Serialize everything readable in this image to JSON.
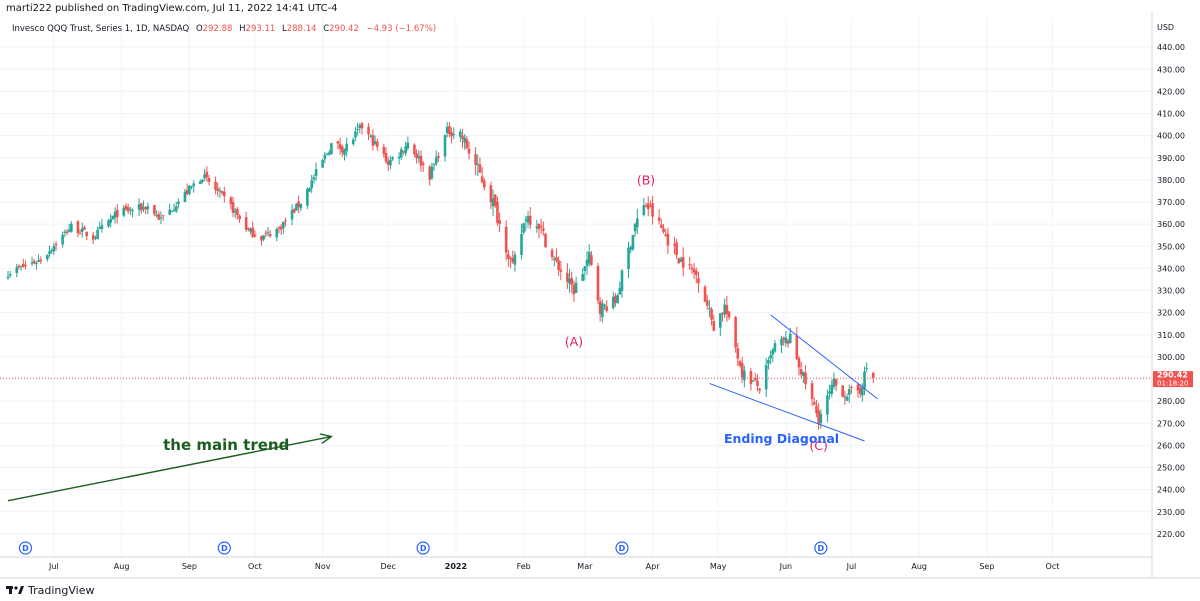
{
  "header": {
    "published_line": "marti222 published on TradingView.com, Jul 11, 2022 14:41 UTC-4"
  },
  "legend": {
    "instrument": "Invesco QQQ Trust, Series 1, 1D, NASDAQ",
    "open_label": "O",
    "open": "292.88",
    "high_label": "H",
    "high": "293.11",
    "low_label": "L",
    "low": "288.14",
    "close_label": "C",
    "close": "290.42",
    "change": "−4.93 (−1.67%)",
    "value_color": "#ef5350"
  },
  "price_axis": {
    "currency": "USD",
    "last_price": "290.42",
    "countdown": "01:18:20",
    "last_price_color": "#ef5350"
  },
  "footer": {
    "brand": "TradingView",
    "logo_icon": "tradingview-logo-icon"
  },
  "annotations": [
    {
      "id": "label-a",
      "text": "(A)",
      "color": "#e91e63",
      "x": "2022-02-24",
      "y": 305
    },
    {
      "id": "label-b",
      "text": "(B)",
      "color": "#e91e63",
      "x": "2022-03-29",
      "y": 378
    },
    {
      "id": "label-c",
      "text": "(C)",
      "color": "#e91e63",
      "x": "2022-06-16",
      "y": 258
    },
    {
      "id": "label-ending-diagonal",
      "text": "Ending Diagonal",
      "color": "#2962ff",
      "x": "2022-05-30",
      "y": 261
    },
    {
      "id": "label-main-trend",
      "text": "the main trend",
      "color": "#1b5e20",
      "x": "2021-08-20",
      "y": 258
    }
  ],
  "drawings": [
    {
      "id": "main-trend-arrow",
      "type": "arrow",
      "color": "#1b5e20",
      "from": {
        "x": "2021-06-10",
        "y": 235
      },
      "to": {
        "x": "2021-11-05",
        "y": 264
      }
    },
    {
      "id": "diagonal-upper-line",
      "type": "line",
      "color": "#2962ff",
      "from": {
        "x": "2022-05-25",
        "y": 319
      },
      "to": {
        "x": "2022-07-13",
        "y": 281
      }
    },
    {
      "id": "diagonal-lower-line",
      "type": "line",
      "color": "#2962ff",
      "from": {
        "x": "2022-04-27",
        "y": 288
      },
      "to": {
        "x": "2022-07-07",
        "y": 262
      }
    }
  ],
  "event_markers": {
    "label": "D",
    "color": "#2962ff",
    "dates": [
      "2021-06-18",
      "2021-09-17",
      "2021-12-17",
      "2022-03-18",
      "2022-06-17"
    ]
  },
  "chart_data": {
    "type": "candlestick",
    "xlabel": "",
    "ylabel": "",
    "x_range": [
      "2021-06-10",
      "2022-10-31"
    ],
    "ylim": [
      215,
      450
    ],
    "y_ticks": [
      220,
      230,
      240,
      250,
      260,
      270,
      280,
      290,
      300,
      310,
      320,
      330,
      340,
      350,
      360,
      370,
      380,
      390,
      400,
      410,
      420,
      430,
      440
    ],
    "x_ticks": [
      {
        "label": "Jul",
        "date": "2021-07-01"
      },
      {
        "label": "Aug",
        "date": "2021-08-01"
      },
      {
        "label": "Sep",
        "date": "2021-09-01"
      },
      {
        "label": "Oct",
        "date": "2021-10-01"
      },
      {
        "label": "Nov",
        "date": "2021-11-01"
      },
      {
        "label": "Dec",
        "date": "2021-12-01"
      },
      {
        "label": "2022",
        "date": "2022-01-01",
        "bold": true
      },
      {
        "label": "Feb",
        "date": "2022-02-01"
      },
      {
        "label": "Mar",
        "date": "2022-03-01"
      },
      {
        "label": "Apr",
        "date": "2022-04-01"
      },
      {
        "label": "May",
        "date": "2022-05-01"
      },
      {
        "label": "Jun",
        "date": "2022-06-01"
      },
      {
        "label": "Jul",
        "date": "2022-07-01"
      },
      {
        "label": "Aug",
        "date": "2022-08-01"
      },
      {
        "label": "Sep",
        "date": "2022-09-01"
      },
      {
        "label": "Oct",
        "date": "2022-10-01"
      }
    ],
    "grid": true,
    "up_color": "#26a69a",
    "down_color": "#ef5350",
    "last_price_line": 290.42,
    "close_anchors": [
      {
        "date": "2021-06-10",
        "close": 338
      },
      {
        "date": "2021-06-25",
        "close": 344
      },
      {
        "date": "2021-07-09",
        "close": 359
      },
      {
        "date": "2021-07-19",
        "close": 354
      },
      {
        "date": "2021-07-30",
        "close": 365
      },
      {
        "date": "2021-08-13",
        "close": 368
      },
      {
        "date": "2021-08-19",
        "close": 362
      },
      {
        "date": "2021-09-07",
        "close": 382
      },
      {
        "date": "2021-09-20",
        "close": 368
      },
      {
        "date": "2021-09-28",
        "close": 357
      },
      {
        "date": "2021-10-04",
        "close": 354
      },
      {
        "date": "2021-10-12",
        "close": 358
      },
      {
        "date": "2021-10-22",
        "close": 370
      },
      {
        "date": "2021-11-05",
        "close": 396
      },
      {
        "date": "2021-11-11",
        "close": 394
      },
      {
        "date": "2021-11-19",
        "close": 404
      },
      {
        "date": "2021-12-01",
        "close": 388
      },
      {
        "date": "2021-12-06",
        "close": 392
      },
      {
        "date": "2021-12-10",
        "close": 397
      },
      {
        "date": "2021-12-20",
        "close": 382
      },
      {
        "date": "2021-12-28",
        "close": 402
      },
      {
        "date": "2022-01-03",
        "close": 401
      },
      {
        "date": "2022-01-18",
        "close": 370
      },
      {
        "date": "2022-01-27",
        "close": 340
      },
      {
        "date": "2022-02-02",
        "close": 364
      },
      {
        "date": "2022-02-08",
        "close": 360
      },
      {
        "date": "2022-02-14",
        "close": 345
      },
      {
        "date": "2022-02-24",
        "close": 330
      },
      {
        "date": "2022-03-03",
        "close": 345
      },
      {
        "date": "2022-03-08",
        "close": 322
      },
      {
        "date": "2022-03-15",
        "close": 325
      },
      {
        "date": "2022-03-24",
        "close": 360
      },
      {
        "date": "2022-03-29",
        "close": 369
      },
      {
        "date": "2022-04-05",
        "close": 358
      },
      {
        "date": "2022-04-13",
        "close": 345
      },
      {
        "date": "2022-04-22",
        "close": 336
      },
      {
        "date": "2022-04-29",
        "close": 314
      },
      {
        "date": "2022-05-04",
        "close": 323
      },
      {
        "date": "2022-05-12",
        "close": 293
      },
      {
        "date": "2022-05-20",
        "close": 286
      },
      {
        "date": "2022-05-27",
        "close": 305
      },
      {
        "date": "2022-06-03",
        "close": 308
      },
      {
        "date": "2022-06-10",
        "close": 288
      },
      {
        "date": "2022-06-16",
        "close": 272
      },
      {
        "date": "2022-06-23",
        "close": 288
      },
      {
        "date": "2022-06-28",
        "close": 283
      },
      {
        "date": "2022-07-05",
        "close": 285
      },
      {
        "date": "2022-07-08",
        "close": 295
      },
      {
        "date": "2022-07-11",
        "close": 290.42
      }
    ]
  }
}
